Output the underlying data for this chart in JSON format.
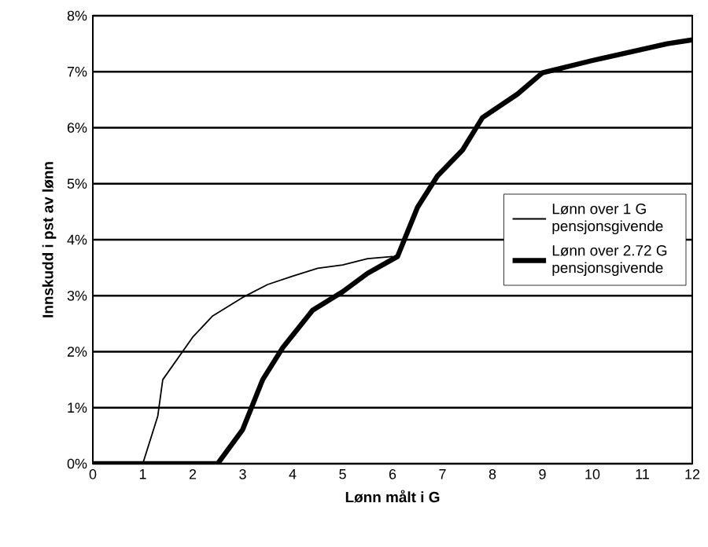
{
  "chart_data": {
    "type": "line",
    "xlabel": "Lønn målt i G",
    "ylabel": "Innskudd i pst av lønn",
    "series": [
      {
        "name": "Lønn over 1 G pensjonsgivende",
        "color": "#000000",
        "x": [
          0,
          1,
          1.3,
          1.4,
          2.0,
          2.4,
          3.0,
          3.5,
          4.0,
          4.5,
          5.0,
          5.5,
          6.0
        ],
        "values": [
          0,
          0,
          0.85,
          1.5,
          2.26,
          2.64,
          2.97,
          3.2,
          3.35,
          3.49,
          3.55,
          3.66,
          3.7
        ]
      },
      {
        "name": "Lønn over 2.72 G pensjonsgivende",
        "color": "#000000",
        "x": [
          0,
          2.5,
          3.0,
          3.4,
          3.8,
          4.4,
          5.0,
          5.5,
          6.1,
          6.5,
          6.9,
          7.4,
          7.8,
          8.5,
          9.0,
          10.0,
          11.0,
          11.5,
          12.0
        ],
        "values": [
          0,
          0,
          0.61,
          1.5,
          2.07,
          2.74,
          3.07,
          3.4,
          3.7,
          4.58,
          5.14,
          5.6,
          6.18,
          6.6,
          6.98,
          7.2,
          7.4,
          7.5,
          7.57
        ]
      }
    ],
    "xlim": [
      0,
      12
    ],
    "xticks": [
      0,
      1,
      2,
      3,
      4,
      5,
      6,
      7,
      8,
      9,
      10,
      11,
      12
    ],
    "ylim": [
      0,
      8
    ],
    "yticks": [
      {
        "value": 0,
        "label": "0%"
      },
      {
        "value": 1,
        "label": "1%"
      },
      {
        "value": 2,
        "label": "2%"
      },
      {
        "value": 3,
        "label": "3%"
      },
      {
        "value": 4,
        "label": "4%"
      },
      {
        "value": 5,
        "label": "5%"
      },
      {
        "value": 6,
        "label": "6%"
      },
      {
        "value": 7,
        "label": "7%"
      },
      {
        "value": 8,
        "label": "8%"
      }
    ],
    "grid": "y",
    "legend": "right"
  }
}
